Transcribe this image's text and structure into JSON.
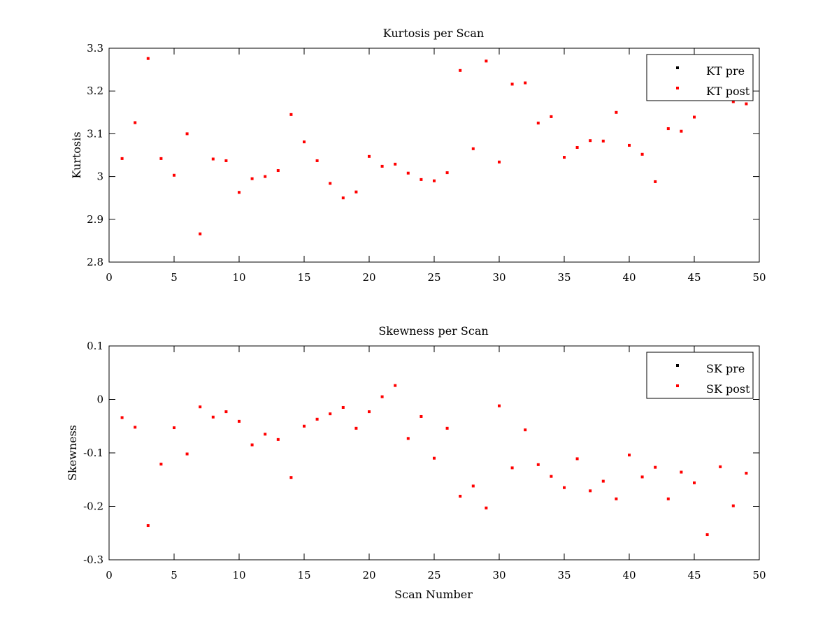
{
  "chart_data": [
    {
      "type": "scatter",
      "title": "Kurtosis per Scan",
      "xlabel": "",
      "ylabel": "Kurtosis",
      "xlim": [
        0,
        50
      ],
      "ylim": [
        2.8,
        3.3
      ],
      "xticks": [
        "0",
        "5",
        "10",
        "15",
        "20",
        "25",
        "30",
        "35",
        "40",
        "45",
        "50"
      ],
      "yticks": [
        "2.8",
        "2.9",
        "3",
        "3.1",
        "3.2",
        "3.3"
      ],
      "grid": false,
      "legend_position": "top-right",
      "series": [
        {
          "name": "KT pre",
          "color": "#000000",
          "x": [],
          "y": []
        },
        {
          "name": "KT post",
          "color": "#ff0000",
          "x": [
            1,
            2,
            3,
            4,
            5,
            6,
            7,
            8,
            9,
            10,
            11,
            12,
            13,
            14,
            15,
            16,
            17,
            18,
            19,
            20,
            21,
            22,
            23,
            24,
            25,
            26,
            27,
            28,
            29,
            30,
            31,
            32,
            33,
            34,
            35,
            36,
            37,
            38,
            39,
            40,
            41,
            42,
            43,
            44,
            45,
            48,
            49
          ],
          "y": [
            3.042,
            3.126,
            3.276,
            3.042,
            3.003,
            3.1,
            2.866,
            3.041,
            3.037,
            2.963,
            2.995,
            3.0,
            3.014,
            3.145,
            3.081,
            3.037,
            2.984,
            2.95,
            2.964,
            3.047,
            3.024,
            3.029,
            3.008,
            2.993,
            2.99,
            3.009,
            3.248,
            3.065,
            3.27,
            3.034,
            3.216,
            3.219,
            3.125,
            3.14,
            3.045,
            3.068,
            3.084,
            3.083,
            3.15,
            3.073,
            3.052,
            2.988,
            3.112,
            3.106,
            3.139,
            3.175,
            3.17
          ]
        }
      ]
    },
    {
      "type": "scatter",
      "title": "Skewness per Scan",
      "xlabel": "Scan Number",
      "ylabel": "Skewness",
      "xlim": [
        0,
        50
      ],
      "ylim": [
        -0.3,
        0.1
      ],
      "xticks": [
        "0",
        "5",
        "10",
        "15",
        "20",
        "25",
        "30",
        "35",
        "40",
        "45",
        "50"
      ],
      "yticks": [
        "-0.3",
        "-0.2",
        "-0.1",
        "0",
        "0.1"
      ],
      "grid": false,
      "legend_position": "top-right",
      "series": [
        {
          "name": "SK pre",
          "color": "#000000",
          "x": [],
          "y": []
        },
        {
          "name": "SK post",
          "color": "#ff0000",
          "x": [
            1,
            2,
            3,
            4,
            5,
            6,
            7,
            8,
            9,
            10,
            11,
            12,
            13,
            14,
            15,
            16,
            17,
            18,
            19,
            20,
            21,
            22,
            23,
            24,
            25,
            26,
            27,
            28,
            29,
            30,
            31,
            32,
            33,
            34,
            35,
            36,
            37,
            38,
            39,
            40,
            41,
            42,
            43,
            44,
            45,
            46,
            47,
            48,
            49
          ],
          "y": [
            -0.034,
            -0.052,
            -0.236,
            -0.121,
            -0.053,
            -0.102,
            -0.014,
            -0.033,
            -0.023,
            -0.041,
            -0.085,
            -0.065,
            -0.075,
            -0.146,
            -0.05,
            -0.037,
            -0.027,
            -0.015,
            -0.054,
            -0.023,
            0.005,
            0.026,
            -0.073,
            -0.032,
            -0.11,
            -0.054,
            -0.181,
            -0.162,
            -0.203,
            -0.012,
            -0.128,
            -0.057,
            -0.122,
            -0.144,
            -0.165,
            -0.111,
            -0.171,
            -0.153,
            -0.186,
            -0.104,
            -0.145,
            -0.127,
            -0.186,
            -0.136,
            -0.156,
            -0.253,
            -0.126,
            -0.199,
            -0.138
          ]
        }
      ]
    }
  ]
}
